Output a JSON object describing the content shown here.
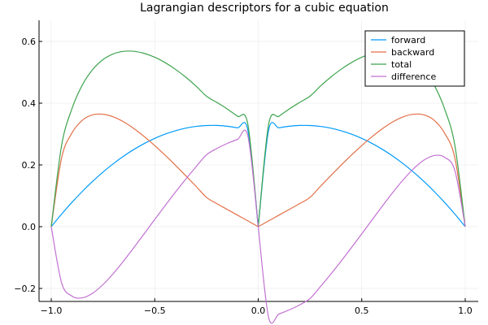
{
  "chart_data": {
    "type": "line",
    "title": "Lagrangian descriptors for a cubic equation",
    "xlabel": "",
    "ylabel": "",
    "xlim": [
      -1.0,
      1.0
    ],
    "ylim": [
      -0.22,
      0.64
    ],
    "x_ticks": [
      -1.0,
      -0.5,
      0.0,
      0.5,
      1.0
    ],
    "x_tick_labels": [
      "−1.0",
      "−0.5",
      "0.0",
      "0.5",
      "1.0"
    ],
    "y_ticks": [
      -0.2,
      0.0,
      0.2,
      0.4,
      0.6
    ],
    "y_tick_labels": [
      "−0.2",
      "0.0",
      "0.2",
      "0.4",
      "0.6"
    ],
    "grid": true,
    "legend_position": "top-right",
    "x": [
      -1.0,
      -0.95,
      -0.9,
      -0.85,
      -0.8,
      -0.75,
      -0.7,
      -0.65,
      -0.6,
      -0.55,
      -0.5,
      -0.45,
      -0.4,
      -0.35,
      -0.3,
      -0.25,
      -0.2,
      -0.15,
      -0.1,
      -0.05,
      0.0,
      0.05,
      0.1,
      0.15,
      0.2,
      0.25,
      0.3,
      0.35,
      0.4,
      0.45,
      0.5,
      0.55,
      0.6,
      0.65,
      0.7,
      0.75,
      0.8,
      0.85,
      0.9,
      0.95,
      1.0
    ],
    "series": [
      {
        "name": "forward",
        "color": "#009AFA",
        "values": [
          0.0,
          0.0407,
          0.0787,
          0.1141,
          0.1468,
          0.1768,
          0.2041,
          0.2286,
          0.2505,
          0.2696,
          0.2861,
          0.2998,
          0.3108,
          0.3192,
          0.3248,
          0.3277,
          0.3279,
          0.3254,
          0.3202,
          0.3123,
          0.0,
          0.3123,
          0.3202,
          0.3254,
          0.3279,
          0.3277,
          0.3248,
          0.3192,
          0.3108,
          0.2998,
          0.2861,
          0.2696,
          0.2505,
          0.2286,
          0.2041,
          0.1768,
          0.1468,
          0.1141,
          0.0787,
          0.0407,
          0.0
        ]
      },
      {
        "name": "backward",
        "color": "#E36F47",
        "values": [
          0.0,
          0.2224,
          0.3034,
          0.3446,
          0.3622,
          0.3643,
          0.3557,
          0.3394,
          0.3175,
          0.2916,
          0.2627,
          0.2316,
          0.1989,
          0.165,
          0.1303,
          0.095,
          0.0746,
          0.056,
          0.0373,
          0.0187,
          0.0,
          0.0187,
          0.0373,
          0.056,
          0.0746,
          0.095,
          0.1303,
          0.165,
          0.1989,
          0.2316,
          0.2627,
          0.2916,
          0.3175,
          0.3394,
          0.3557,
          0.3643,
          0.3622,
          0.3446,
          0.3034,
          0.2224,
          0.0
        ]
      },
      {
        "name": "total",
        "color": "#3EA44E",
        "values": [
          0.0,
          0.2631,
          0.3821,
          0.4587,
          0.509,
          0.5411,
          0.5598,
          0.568,
          0.568,
          0.5612,
          0.5488,
          0.5314,
          0.5097,
          0.4842,
          0.4551,
          0.4227,
          0.4025,
          0.3814,
          0.3575,
          0.331,
          0.0,
          0.331,
          0.3575,
          0.3814,
          0.4025,
          0.4227,
          0.4551,
          0.4842,
          0.5097,
          0.5314,
          0.5488,
          0.5612,
          0.568,
          0.568,
          0.5598,
          0.5411,
          0.509,
          0.4587,
          0.3821,
          0.2631,
          0.0
        ]
      },
      {
        "name": "difference",
        "color": "#C271D2",
        "values": [
          0.0,
          -0.1817,
          -0.2247,
          -0.2305,
          -0.2154,
          -0.1875,
          -0.1516,
          -0.1108,
          -0.067,
          -0.022,
          0.0234,
          0.0682,
          0.1119,
          0.1542,
          0.1945,
          0.2327,
          0.2533,
          0.2694,
          0.2829,
          0.2936,
          0.0,
          -0.2936,
          -0.2829,
          -0.2694,
          -0.2533,
          -0.2327,
          -0.1945,
          -0.1542,
          -0.1119,
          -0.0682,
          -0.0234,
          0.022,
          0.067,
          0.1108,
          0.1516,
          0.1875,
          0.2154,
          0.2305,
          0.2247,
          0.1817,
          0.0
        ]
      }
    ]
  }
}
